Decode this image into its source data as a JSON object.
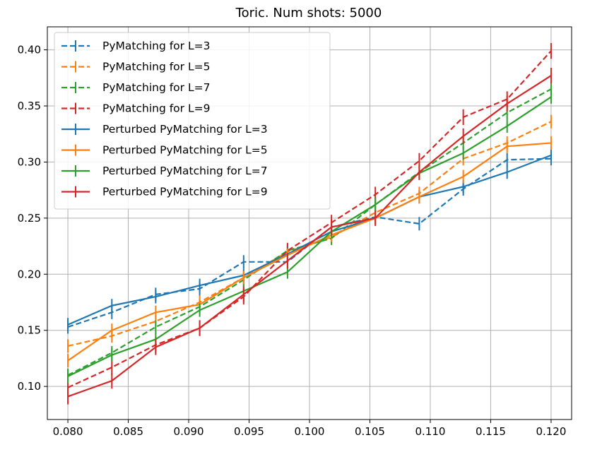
{
  "chart_data": {
    "type": "line",
    "title": "Toric. Num shots: 5000",
    "xlabel": "",
    "ylabel": "",
    "xlim": [
      0.0783,
      0.1217
    ],
    "ylim": [
      0.0705,
      0.4205
    ],
    "xticks": [
      0.08,
      0.085,
      0.09,
      0.095,
      0.1,
      0.105,
      0.11,
      0.115,
      0.12
    ],
    "xtick_labels": [
      "0.080",
      "0.085",
      "0.090",
      "0.095",
      "0.100",
      "0.105",
      "0.110",
      "0.115",
      "0.120"
    ],
    "yticks": [
      0.1,
      0.15,
      0.2,
      0.25,
      0.3,
      0.35,
      0.4
    ],
    "ytick_labels": [
      "0.10",
      "0.15",
      "0.20",
      "0.25",
      "0.30",
      "0.35",
      "0.40"
    ],
    "grid": true,
    "legend_position": "top-left",
    "x": [
      0.08,
      0.08364,
      0.08727,
      0.09091,
      0.09455,
      0.09818,
      0.10182,
      0.10545,
      0.10909,
      0.11273,
      0.11636,
      0.12
    ],
    "series": [
      {
        "name": "PyMatching for L=3",
        "color": "#1f77b4",
        "dash": "dashed",
        "values": [
          0.153,
          0.166,
          0.182,
          0.187,
          0.211,
          0.211,
          0.242,
          0.251,
          0.245,
          0.276,
          0.302,
          0.303
        ],
        "err": 0.006
      },
      {
        "name": "PyMatching for L=5",
        "color": "#ff7f0e",
        "dash": "dashed",
        "values": [
          0.136,
          0.145,
          0.158,
          0.175,
          0.197,
          0.22,
          0.233,
          0.255,
          0.272,
          0.303,
          0.317,
          0.336
        ],
        "err": 0.006
      },
      {
        "name": "PyMatching for L=7",
        "color": "#2ca02c",
        "dash": "dashed",
        "values": [
          0.11,
          0.13,
          0.153,
          0.171,
          0.195,
          0.221,
          0.232,
          0.262,
          0.291,
          0.317,
          0.344,
          0.365
        ],
        "err": 0.006
      },
      {
        "name": "PyMatching for L=9",
        "color": "#d62728",
        "dash": "dashed",
        "values": [
          0.099,
          0.117,
          0.137,
          0.152,
          0.18,
          0.221,
          0.246,
          0.271,
          0.301,
          0.34,
          0.356,
          0.399
        ],
        "err": 0.007
      },
      {
        "name": "Perturbed PyMatching for L=3",
        "color": "#1f77b4",
        "dash": "solid",
        "values": [
          0.155,
          0.172,
          0.18,
          0.19,
          0.199,
          0.218,
          0.238,
          0.25,
          0.269,
          0.278,
          0.291,
          0.306
        ],
        "err": 0.006
      },
      {
        "name": "Perturbed PyMatching for L=5",
        "color": "#ff7f0e",
        "dash": "solid",
        "values": [
          0.123,
          0.15,
          0.166,
          0.173,
          0.197,
          0.217,
          0.235,
          0.25,
          0.269,
          0.287,
          0.314,
          0.317
        ],
        "err": 0.006
      },
      {
        "name": "Perturbed PyMatching for L=7",
        "color": "#2ca02c",
        "dash": "solid",
        "values": [
          0.109,
          0.128,
          0.142,
          0.168,
          0.185,
          0.202,
          0.238,
          0.262,
          0.29,
          0.308,
          0.332,
          0.358
        ],
        "err": 0.006
      },
      {
        "name": "Perturbed PyMatching for L=9",
        "color": "#d62728",
        "dash": "solid",
        "values": [
          0.091,
          0.105,
          0.135,
          0.152,
          0.182,
          0.212,
          0.242,
          0.25,
          0.291,
          0.323,
          0.352,
          0.377
        ],
        "err": 0.007
      }
    ]
  }
}
